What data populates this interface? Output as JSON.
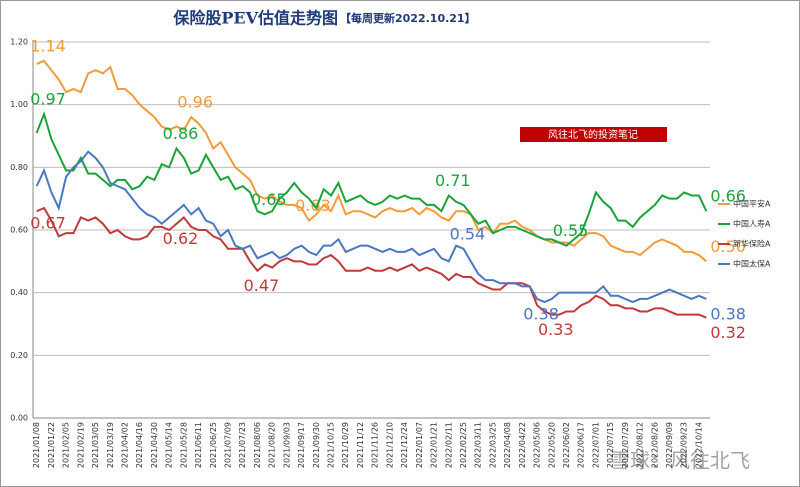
{
  "chart_data": {
    "type": "line",
    "title": "保险股PEV估值走势图",
    "subtitle": "【每周更新2022.10.21】",
    "annotations": [
      "风往北飞的投资笔记",
      "雪球：风往北飞"
    ],
    "categories": [
      "2021/01/08",
      null,
      "2021/01/22",
      null,
      "2021/02/05",
      null,
      "2021/02/19",
      null,
      "2021/03/05",
      null,
      "2021/03/19",
      null,
      "2021/04/02",
      null,
      "2021/04/16",
      null,
      "2021/04/30",
      null,
      "2021/05/14",
      null,
      "2021/05/28",
      null,
      "2021/06/11",
      null,
      "2021/06/25",
      null,
      "2021/07/09",
      null,
      "2021/07/23",
      null,
      "2021/08/06",
      null,
      "2021/08/20",
      null,
      "2021/09/03",
      null,
      "2021/09/17",
      null,
      "2021/09/30",
      null,
      "2021/10/15",
      null,
      "2021/10/29",
      null,
      "2021/11/12",
      null,
      "2021/11/26",
      null,
      "2021/12/10",
      null,
      "2021/12/24",
      null,
      "2022/01/07",
      null,
      "2022/01/21",
      null,
      "2022/02/11",
      null,
      "2022/02/25",
      null,
      "2022/03/11",
      null,
      "2022/03/25",
      null,
      "2022/04/08",
      null,
      "2022/04/22",
      null,
      "2022/05/06",
      null,
      "2022/05/20",
      null,
      "2022/06/02",
      null,
      "2022/06/17",
      null,
      "2022/07/01",
      null,
      "2022/07/15",
      null,
      "2022/07/29",
      null,
      "2022/08/12",
      null,
      "2022/08/26",
      null,
      "2022/09/09",
      null,
      "2022/09/23",
      null,
      "2022/10/14",
      null
    ],
    "series": [
      {
        "name": "中国平安A",
        "color": "#f39b3a",
        "values": [
          1.13,
          1.14,
          1.11,
          1.08,
          1.04,
          1.05,
          1.04,
          1.1,
          1.11,
          1.1,
          1.12,
          1.05,
          1.05,
          1.03,
          1.0,
          0.98,
          0.96,
          0.93,
          0.92,
          0.93,
          0.92,
          0.96,
          0.94,
          0.91,
          0.86,
          0.88,
          0.84,
          0.8,
          0.78,
          0.76,
          0.71,
          0.7,
          0.71,
          0.69,
          0.68,
          0.68,
          0.67,
          0.63,
          0.65,
          0.68,
          0.66,
          0.71,
          0.65,
          0.66,
          0.66,
          0.65,
          0.64,
          0.66,
          0.67,
          0.66,
          0.66,
          0.67,
          0.65,
          0.67,
          0.66,
          0.64,
          0.63,
          0.66,
          0.66,
          0.65,
          0.6,
          0.61,
          0.59,
          0.62,
          0.62,
          0.63,
          0.61,
          0.6,
          0.58,
          0.57,
          0.56,
          0.56,
          0.56,
          0.55,
          0.57,
          0.59,
          0.59,
          0.58,
          0.55,
          0.54,
          0.53,
          0.53,
          0.52,
          0.54,
          0.56,
          0.57,
          0.56,
          0.55,
          0.53,
          0.53,
          0.52,
          0.5
        ],
        "value_labels": [
          null,
          "1.14",
          null,
          null,
          null,
          null,
          null,
          null,
          null,
          null,
          null,
          null,
          null,
          null,
          null,
          null,
          null,
          null,
          null,
          null,
          null,
          "0.96",
          null,
          null,
          null,
          null,
          null,
          null,
          null,
          null,
          null,
          null,
          null,
          null,
          null,
          null,
          null,
          "0.63",
          null,
          null,
          null,
          null,
          null,
          null,
          null,
          null,
          null,
          null,
          null,
          null,
          null,
          null,
          null,
          null,
          null,
          null,
          null,
          null,
          null,
          null,
          null,
          null,
          null,
          null,
          null,
          null,
          null,
          null,
          null,
          null,
          null,
          null,
          null,
          null,
          null,
          null,
          null,
          null,
          null,
          null,
          null,
          null,
          null,
          null,
          null,
          null,
          null,
          null,
          null,
          null,
          null,
          "0.50"
        ]
      },
      {
        "name": "中国人寿A",
        "color": "#1aa33a",
        "values": [
          0.91,
          0.97,
          0.89,
          0.84,
          0.79,
          0.79,
          0.83,
          0.78,
          0.78,
          0.76,
          0.74,
          0.76,
          0.76,
          0.73,
          0.74,
          0.77,
          0.76,
          0.81,
          0.8,
          0.86,
          0.83,
          0.78,
          0.79,
          0.84,
          0.8,
          0.76,
          0.77,
          0.73,
          0.74,
          0.72,
          0.66,
          0.65,
          0.66,
          0.7,
          0.72,
          0.75,
          0.72,
          0.7,
          0.67,
          0.73,
          0.71,
          0.75,
          0.69,
          0.7,
          0.71,
          0.69,
          0.68,
          0.69,
          0.71,
          0.7,
          0.71,
          0.7,
          0.7,
          0.68,
          0.68,
          0.66,
          0.71,
          0.69,
          0.68,
          0.65,
          0.62,
          0.63,
          0.59,
          0.6,
          0.61,
          0.61,
          0.6,
          0.59,
          0.58,
          0.57,
          0.57,
          0.56,
          0.55,
          0.57,
          0.59,
          0.65,
          0.72,
          0.69,
          0.67,
          0.63,
          0.63,
          0.61,
          0.64,
          0.66,
          0.68,
          0.71,
          0.7,
          0.7,
          0.72,
          0.71,
          0.71,
          0.66
        ],
        "value_labels": [
          null,
          "0.97",
          null,
          null,
          null,
          null,
          null,
          null,
          null,
          null,
          null,
          null,
          null,
          null,
          null,
          null,
          null,
          null,
          null,
          "0.86",
          null,
          null,
          null,
          null,
          null,
          null,
          null,
          null,
          null,
          null,
          null,
          "0.65",
          null,
          null,
          null,
          null,
          null,
          null,
          null,
          null,
          null,
          null,
          null,
          null,
          null,
          null,
          null,
          null,
          null,
          null,
          null,
          null,
          null,
          null,
          null,
          null,
          "0.71",
          null,
          null,
          null,
          null,
          null,
          null,
          null,
          null,
          null,
          null,
          null,
          null,
          null,
          null,
          null,
          "0.55",
          null,
          null,
          null,
          null,
          null,
          null,
          null,
          null,
          null,
          null,
          null,
          null,
          null,
          null,
          null,
          null,
          null,
          null,
          "0.66"
        ]
      },
      {
        "name": "新华保险A",
        "color": "#c0393b",
        "values": [
          0.66,
          0.67,
          0.63,
          0.58,
          0.59,
          0.59,
          0.64,
          0.63,
          0.64,
          0.62,
          0.59,
          0.6,
          0.58,
          0.57,
          0.57,
          0.58,
          0.61,
          0.61,
          0.6,
          0.62,
          0.64,
          0.61,
          0.6,
          0.6,
          0.58,
          0.57,
          0.54,
          0.54,
          0.54,
          0.5,
          0.47,
          0.49,
          0.48,
          0.5,
          0.51,
          0.5,
          0.5,
          0.49,
          0.49,
          0.51,
          0.52,
          0.5,
          0.47,
          0.47,
          0.47,
          0.48,
          0.47,
          0.47,
          0.48,
          0.47,
          0.48,
          0.49,
          0.47,
          0.48,
          0.47,
          0.46,
          0.44,
          0.46,
          0.45,
          0.45,
          0.43,
          0.42,
          0.41,
          0.41,
          0.43,
          0.43,
          0.43,
          0.42,
          0.36,
          0.34,
          0.33,
          0.33,
          0.34,
          0.34,
          0.36,
          0.37,
          0.39,
          0.38,
          0.36,
          0.36,
          0.35,
          0.35,
          0.34,
          0.34,
          0.35,
          0.35,
          0.34,
          0.33,
          0.33,
          0.33,
          0.33,
          0.32
        ],
        "value_labels": [
          null,
          "0.67",
          null,
          null,
          null,
          null,
          null,
          null,
          null,
          null,
          null,
          null,
          null,
          null,
          null,
          null,
          null,
          null,
          null,
          "0.62",
          null,
          null,
          null,
          null,
          null,
          null,
          null,
          null,
          null,
          null,
          "0.47",
          null,
          null,
          null,
          null,
          null,
          null,
          null,
          null,
          null,
          null,
          null,
          null,
          null,
          null,
          null,
          null,
          null,
          null,
          null,
          null,
          null,
          null,
          null,
          null,
          null,
          null,
          null,
          null,
          null,
          null,
          null,
          null,
          null,
          null,
          null,
          null,
          null,
          null,
          null,
          "0.33",
          null,
          null,
          null,
          null,
          null,
          null,
          null,
          null,
          null,
          null,
          null,
          null,
          null,
          null,
          null,
          null,
          null,
          null,
          null,
          null,
          "0.32"
        ]
      },
      {
        "name": "中国太保A",
        "color": "#4a78c0",
        "values": [
          0.74,
          0.79,
          0.72,
          0.67,
          0.77,
          0.8,
          0.82,
          0.85,
          0.83,
          0.8,
          0.75,
          0.74,
          0.73,
          0.7,
          0.67,
          0.65,
          0.64,
          0.62,
          0.64,
          0.66,
          0.68,
          0.65,
          0.67,
          0.63,
          0.62,
          0.58,
          0.6,
          0.55,
          0.54,
          0.55,
          0.51,
          0.52,
          0.53,
          0.51,
          0.52,
          0.54,
          0.55,
          0.53,
          0.52,
          0.55,
          0.55,
          0.57,
          0.53,
          0.54,
          0.55,
          0.55,
          0.54,
          0.53,
          0.54,
          0.53,
          0.53,
          0.54,
          0.52,
          0.53,
          0.54,
          0.51,
          0.5,
          0.55,
          0.54,
          0.5,
          0.46,
          0.44,
          0.44,
          0.43,
          0.43,
          0.43,
          0.42,
          0.42,
          0.38,
          0.37,
          0.38,
          0.4,
          0.4,
          0.4,
          0.4,
          0.4,
          0.4,
          0.42,
          0.39,
          0.39,
          0.38,
          0.37,
          0.38,
          0.38,
          0.39,
          0.4,
          0.41,
          0.4,
          0.39,
          0.38,
          0.39,
          0.38
        ],
        "value_labels": [
          null,
          null,
          null,
          null,
          null,
          null,
          null,
          null,
          null,
          null,
          null,
          null,
          null,
          null,
          null,
          null,
          null,
          null,
          null,
          null,
          null,
          null,
          null,
          null,
          null,
          null,
          null,
          null,
          null,
          null,
          null,
          null,
          null,
          null,
          null,
          null,
          null,
          null,
          null,
          null,
          null,
          null,
          null,
          null,
          null,
          null,
          null,
          null,
          null,
          null,
          null,
          null,
          null,
          null,
          null,
          null,
          null,
          null,
          "0.54",
          null,
          null,
          null,
          null,
          null,
          null,
          null,
          null,
          null,
          "0.38",
          null,
          null,
          null,
          null,
          null,
          null,
          null,
          null,
          null,
          null,
          null,
          null,
          null,
          null,
          null,
          null,
          null,
          null,
          null,
          null,
          null,
          null,
          "0.38"
        ]
      }
    ],
    "ylim": [
      0,
      1.2
    ],
    "yticks": [
      {
        "value": 0,
        "label": "0.00"
      },
      {
        "value": 0.2,
        "label": "0.20"
      },
      {
        "value": 0.4,
        "label": "0.40"
      },
      {
        "value": 0.6,
        "label": "0.60"
      },
      {
        "value": 0.8,
        "label": "0.80"
      },
      {
        "value": 1.0,
        "label": "1.00"
      },
      {
        "value": 1.2,
        "label": "1.20"
      }
    ],
    "grid": true
  }
}
